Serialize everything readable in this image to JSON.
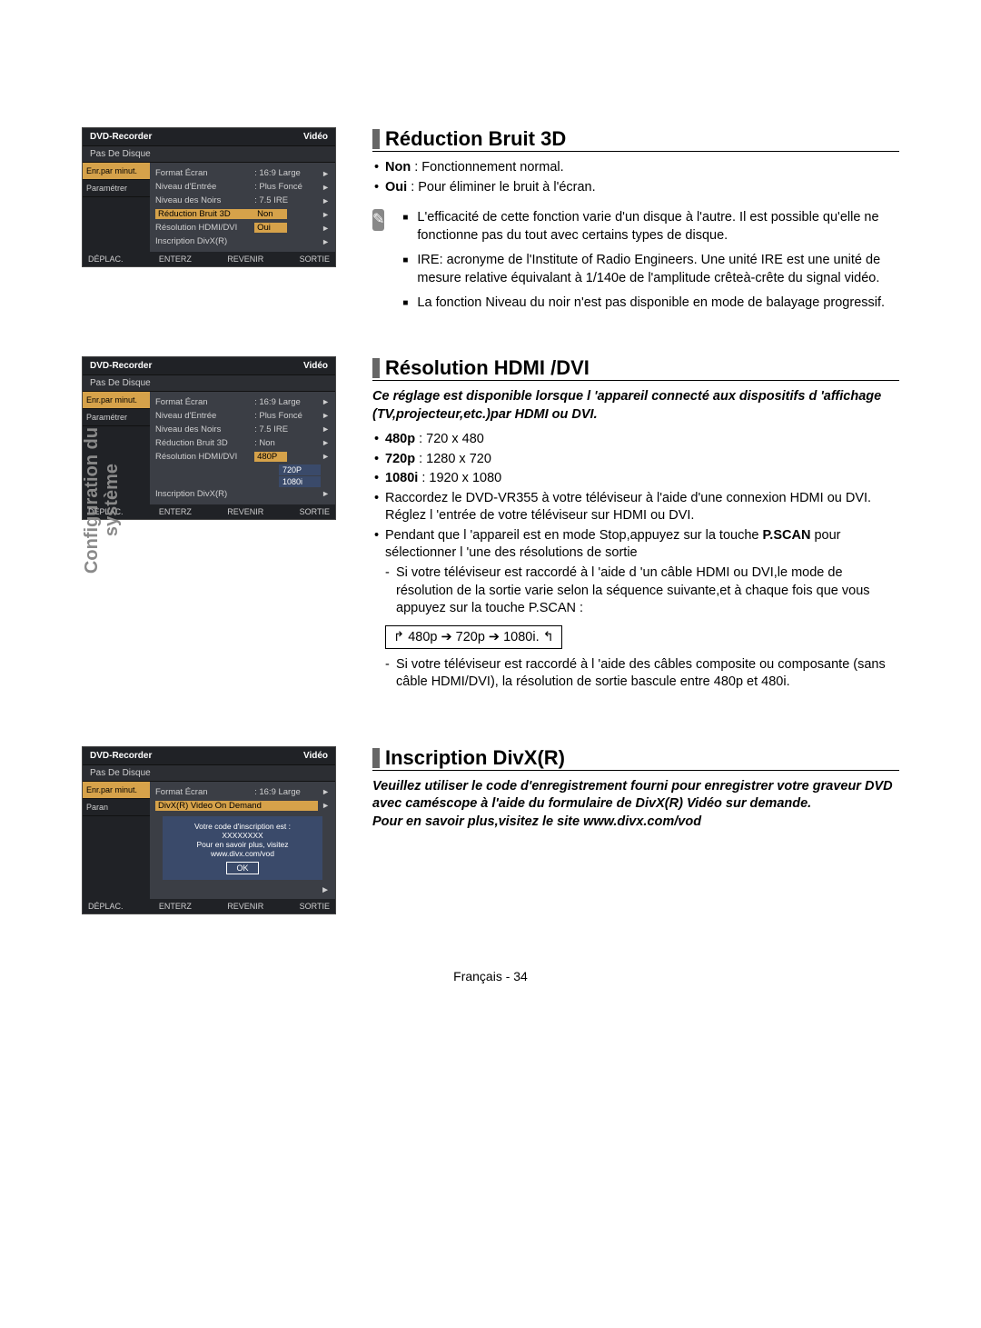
{
  "vtab": "Configuration du\nsystème",
  "footer": "Français - 34",
  "common_osd": {
    "title": "DVD-Recorder",
    "category": "Vidéo",
    "subtitle": "Pas De Disque",
    "side": [
      "Enr.par minut.",
      "Paramétrer"
    ],
    "foot": [
      "DÉPLAC.",
      "ENTERZ",
      "REVENIR",
      "SORTIE"
    ]
  },
  "section1": {
    "heading": "Réduction Bruit 3D",
    "bul1a": "Non",
    "bul1b": " : Fonctionnement normal.",
    "bul2a": "Oui",
    "bul2b": " : Pour éliminer le bruit à l'écran.",
    "note1": "L'efficacité de cette fonction varie d'un disque à l'autre. Il est possible qu'elle ne fonctionne pas du tout avec certains types de disque.",
    "note2": "IRE: acronyme de l'Institute of Radio Engineers. Une unité IRE est une unité de mesure relative équivalant à 1/140e de l'amplitude crêteà-crête du signal vidéo.",
    "note3": "La fonction Niveau du noir n'est pas disponible en mode de balayage progressif.",
    "osd_rows": [
      {
        "lab": "Format Écran",
        "val": ": 16:9 Large"
      },
      {
        "lab": "Niveau d'Entrée",
        "val": ": Plus Foncé"
      },
      {
        "lab": "Niveau des Noirs",
        "val": ": 7.5 IRE"
      },
      {
        "lab": "Réduction Bruit 3D",
        "val": "Non",
        "hl": "lab"
      },
      {
        "lab": "Résolution HDMI/DVI",
        "val": "Oui",
        "hl": "val"
      },
      {
        "lab": "Inscription DivX(R)",
        "val": ""
      }
    ]
  },
  "section2": {
    "heading": "Résolution HDMI /DVI",
    "intro": "Ce réglage est disponible lorsque l 'appareil connecté aux dispositifs d 'affichage (TV,projecteur,etc.)par HDMI ou DVI.",
    "r1a": "480p",
    "r1b": " : 720 x 480",
    "r2a": "720p",
    "r2b": " : 1280 x 720",
    "r3a": "1080i",
    "r3b": " : 1920 x 1080",
    "p1": "Raccordez le DVD-VR355 à votre téléviseur à l'aide d'une connexion HDMI ou DVI.",
    "p1b": "Réglez l 'entrée de votre téléviseur sur HDMI ou DVI.",
    "p2a": "Pendant que l 'appareil est en mode Stop,appuyez sur la touche ",
    "p2b": "P.SCAN",
    "p2c": " pour sélectionner l 'une des résolutions de sortie",
    "d1": "Si votre téléviseur est raccordé à l 'aide d 'un câble HDMI ou DVI,le mode de résolution de la sortie varie selon la séquence suivante,et à chaque fois que vous appuyez sur la touche P.SCAN :",
    "seq": "480p ➔ 720p ➔ 1080i.",
    "d2": "Si votre téléviseur est raccordé à l 'aide des câbles composite ou composante (sans câble HDMI/DVI), la résolution de sortie bascule entre 480p et 480i.",
    "osd_rows": [
      {
        "lab": "Format Écran",
        "val": ": 16:9 Large"
      },
      {
        "lab": "Niveau d'Entrée",
        "val": ": Plus Foncé"
      },
      {
        "lab": "Niveau des Noirs",
        "val": ": 7.5 IRE"
      },
      {
        "lab": "Réduction Bruit 3D",
        "val": ": Non"
      },
      {
        "lab": "Résolution HDMI/DVI",
        "val": "480P",
        "drop": [
          "720P",
          "1080i"
        ]
      },
      {
        "lab": "Inscription DivX(R)",
        "val": ""
      }
    ]
  },
  "section3": {
    "heading": "Inscription DivX(R)",
    "p1": "Veuillez utiliser le code d'enregistrement fourni pour enregistrer votre graveur DVD avec caméscope à l'aide du formulaire de DivX(R) Vidéo sur demande.",
    "p2": "Pour en savoir plus,visitez le site www.divx.com/vod",
    "osd_rows": [
      {
        "lab": "Format Écran",
        "val": ": 16:9 Large"
      },
      {
        "lab": "DivX(R) Video On Demand",
        "val": ""
      }
    ],
    "popup1": "Votre code d'inscription est :",
    "popup2": "XXXXXXXX",
    "popup3": "Pour en savoir plus, visitez www.divx.com/vod",
    "popup_btn": "OK"
  }
}
